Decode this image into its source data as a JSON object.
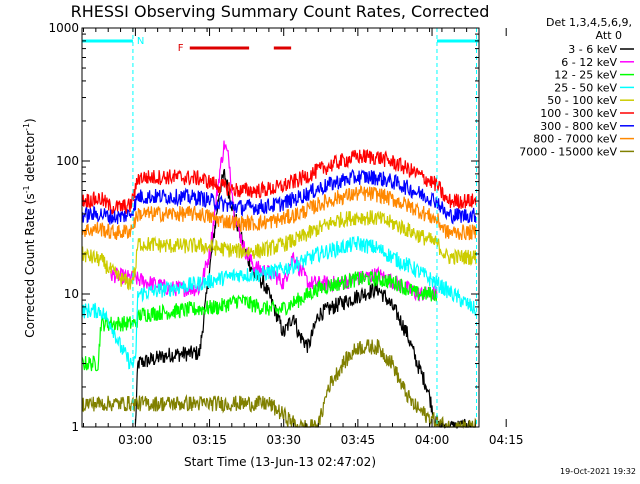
{
  "chart_data": {
    "type": "line",
    "title": "RHESSI Observing Summary Count Rates, Corrected",
    "xlabel": "Start Time (13-Jun-13 02:47:02)",
    "ylabel_main": "Corrected Count Rate (s",
    "ylabel_sup1": "-1",
    "ylabel_mid": " detector",
    "ylabel_sup2": "-1",
    "ylabel_end": ")",
    "y_scale": "log",
    "ylim": [
      1,
      1000
    ],
    "xlim_minutes": [
      2.2,
      82.5
    ],
    "y_ticks": [
      {
        "v": 1,
        "label": "1"
      },
      {
        "v": 10,
        "label": "10"
      },
      {
        "v": 100,
        "label": "100"
      },
      {
        "v": 1000,
        "label": "1000"
      }
    ],
    "x_ticks": [
      {
        "m": 13,
        "label": "03:00"
      },
      {
        "m": 28,
        "label": "03:15"
      },
      {
        "m": 43,
        "label": "03:30"
      },
      {
        "m": 58,
        "label": "03:45"
      },
      {
        "m": 73,
        "label": "04:00"
      },
      {
        "m": 88,
        "label": "04:15"
      }
    ],
    "legend_header": [
      "Det 1,3,4,5,6,9,",
      "Att 0"
    ],
    "legend_position": "right",
    "series": [
      {
        "name": "3 - 6 keV",
        "color": "#000000",
        "points": [
          [
            13,
            1
          ],
          [
            13.5,
            3
          ],
          [
            20,
            3.5
          ],
          [
            26,
            3.6
          ],
          [
            28,
            15
          ],
          [
            30,
            60
          ],
          [
            31,
            80
          ],
          [
            33,
            40
          ],
          [
            35,
            22
          ],
          [
            37,
            14
          ],
          [
            39,
            12
          ],
          [
            41,
            8
          ],
          [
            43,
            5
          ],
          [
            45,
            7
          ],
          [
            46,
            5
          ],
          [
            48,
            4
          ],
          [
            50,
            7
          ],
          [
            53,
            8
          ],
          [
            56,
            9
          ],
          [
            59,
            10
          ],
          [
            62,
            11
          ],
          [
            64,
            9
          ],
          [
            66,
            7
          ],
          [
            68,
            5
          ],
          [
            70,
            3
          ],
          [
            72,
            2
          ],
          [
            74,
            1
          ],
          [
            82,
            1
          ]
        ]
      },
      {
        "name": "6 - 12 keV",
        "color": "#ff00ff",
        "points": [
          [
            8,
            14
          ],
          [
            13,
            13
          ],
          [
            20,
            11
          ],
          [
            26,
            11
          ],
          [
            28,
            20
          ],
          [
            30,
            80
          ],
          [
            31,
            135
          ],
          [
            32,
            100
          ],
          [
            33,
            40
          ],
          [
            35,
            22
          ],
          [
            37,
            16
          ],
          [
            39,
            15
          ],
          [
            41,
            14
          ],
          [
            43,
            12
          ],
          [
            45,
            20
          ],
          [
            46,
            16
          ],
          [
            48,
            12
          ],
          [
            50,
            12
          ],
          [
            54,
            12
          ],
          [
            58,
            13
          ],
          [
            62,
            14
          ],
          [
            66,
            12
          ],
          [
            70,
            10
          ],
          [
            74,
            10
          ]
        ]
      },
      {
        "name": "12 - 25 keV",
        "color": "#00ff00",
        "points": [
          [
            2,
            3
          ],
          [
            5.5,
            3
          ],
          [
            6,
            6
          ],
          [
            13,
            6
          ],
          [
            14,
            7
          ],
          [
            22,
            7.5
          ],
          [
            30,
            8
          ],
          [
            34,
            9
          ],
          [
            38,
            8
          ],
          [
            42,
            7.5
          ],
          [
            46,
            9
          ],
          [
            50,
            11
          ],
          [
            54,
            12
          ],
          [
            58,
            13
          ],
          [
            62,
            13
          ],
          [
            66,
            12
          ],
          [
            70,
            10
          ],
          [
            74,
            10
          ]
        ]
      },
      {
        "name": "25 - 50 keV",
        "color": "#00ffff",
        "points": [
          [
            2,
            7.5
          ],
          [
            6,
            7.5
          ],
          [
            8,
            6
          ],
          [
            10,
            4
          ],
          [
            12,
            3
          ],
          [
            13,
            3
          ],
          [
            13.5,
            10
          ],
          [
            20,
            11
          ],
          [
            26,
            12
          ],
          [
            30,
            13
          ],
          [
            34,
            14
          ],
          [
            38,
            14
          ],
          [
            42,
            15
          ],
          [
            46,
            17
          ],
          [
            50,
            20
          ],
          [
            54,
            22
          ],
          [
            58,
            24
          ],
          [
            62,
            22
          ],
          [
            66,
            18
          ],
          [
            70,
            15
          ],
          [
            74,
            12
          ],
          [
            82,
            7.5
          ]
        ]
      },
      {
        "name": "50 - 100 keV",
        "color": "#cccc00",
        "points": [
          [
            2,
            20
          ],
          [
            6,
            18
          ],
          [
            8,
            15
          ],
          [
            10,
            13
          ],
          [
            12,
            12
          ],
          [
            13,
            15
          ],
          [
            13.5,
            24
          ],
          [
            20,
            23
          ],
          [
            26,
            23
          ],
          [
            30,
            22
          ],
          [
            34,
            21
          ],
          [
            38,
            21
          ],
          [
            42,
            23
          ],
          [
            46,
            26
          ],
          [
            50,
            31
          ],
          [
            54,
            36
          ],
          [
            58,
            38
          ],
          [
            62,
            37
          ],
          [
            66,
            33
          ],
          [
            70,
            28
          ],
          [
            74,
            24
          ],
          [
            76,
            19
          ],
          [
            82,
            19
          ]
        ]
      },
      {
        "name": "100 - 300 keV",
        "color": "#ff0000",
        "points": [
          [
            2,
            50
          ],
          [
            6,
            52
          ],
          [
            8,
            45
          ],
          [
            10,
            45
          ],
          [
            12,
            46
          ],
          [
            13,
            60
          ],
          [
            13.5,
            75
          ],
          [
            20,
            76
          ],
          [
            26,
            74
          ],
          [
            30,
            65
          ],
          [
            34,
            60
          ],
          [
            38,
            60
          ],
          [
            42,
            63
          ],
          [
            46,
            72
          ],
          [
            50,
            85
          ],
          [
            54,
            98
          ],
          [
            58,
            108
          ],
          [
            62,
            107
          ],
          [
            66,
            95
          ],
          [
            70,
            80
          ],
          [
            74,
            66
          ],
          [
            76,
            50
          ],
          [
            82,
            50
          ]
        ]
      },
      {
        "name": "300 - 800 keV",
        "color": "#0000ff",
        "points": [
          [
            2,
            39
          ],
          [
            6,
            40
          ],
          [
            8,
            38
          ],
          [
            10,
            38
          ],
          [
            12,
            40
          ],
          [
            13,
            48
          ],
          [
            13.5,
            54
          ],
          [
            20,
            54
          ],
          [
            26,
            53
          ],
          [
            30,
            48
          ],
          [
            34,
            45
          ],
          [
            38,
            45
          ],
          [
            42,
            47
          ],
          [
            46,
            53
          ],
          [
            50,
            62
          ],
          [
            54,
            70
          ],
          [
            58,
            76
          ],
          [
            62,
            75
          ],
          [
            66,
            68
          ],
          [
            70,
            58
          ],
          [
            74,
            50
          ],
          [
            76,
            39
          ],
          [
            82,
            39
          ]
        ]
      },
      {
        "name": "800 - 7000 keV",
        "color": "#ff8800",
        "points": [
          [
            2,
            30
          ],
          [
            6,
            31
          ],
          [
            8,
            29
          ],
          [
            10,
            29
          ],
          [
            12,
            30
          ],
          [
            13,
            36
          ],
          [
            13.5,
            40
          ],
          [
            20,
            40
          ],
          [
            26,
            40
          ],
          [
            30,
            36
          ],
          [
            34,
            34
          ],
          [
            38,
            34
          ],
          [
            42,
            36
          ],
          [
            46,
            40
          ],
          [
            50,
            47
          ],
          [
            54,
            53
          ],
          [
            58,
            57
          ],
          [
            62,
            56
          ],
          [
            66,
            50
          ],
          [
            70,
            43
          ],
          [
            74,
            36
          ],
          [
            76,
            29
          ],
          [
            82,
            29
          ]
        ]
      },
      {
        "name": "7000 - 15000 keV",
        "color": "#808000",
        "points": [
          [
            2,
            1.5
          ],
          [
            8,
            1.5
          ],
          [
            13,
            1.5
          ],
          [
            20,
            1.5
          ],
          [
            26,
            1.5
          ],
          [
            30,
            1.5
          ],
          [
            40,
            1.5
          ],
          [
            46,
            1
          ],
          [
            50,
            1
          ],
          [
            52,
            2
          ],
          [
            55,
            3
          ],
          [
            58,
            4
          ],
          [
            62,
            4
          ],
          [
            65,
            3
          ],
          [
            67,
            2
          ],
          [
            69,
            1.5
          ],
          [
            72,
            1.2
          ],
          [
            76,
            1
          ],
          [
            82,
            1
          ]
        ]
      }
    ],
    "attenuator_flag": {
      "label": "F",
      "color": "#dd0000",
      "segments": [
        [
          24,
          36
        ],
        [
          41,
          44.5
        ]
      ]
    },
    "night_bars": {
      "color": "#00ffff",
      "label": "N",
      "segments": [
        [
          2.2,
          12.5
        ],
        [
          74,
          82.5
        ]
      ]
    },
    "night_boundaries": [
      12.5,
      74,
      82
    ]
  },
  "timestamp": "19-Oct-2021 19:32"
}
